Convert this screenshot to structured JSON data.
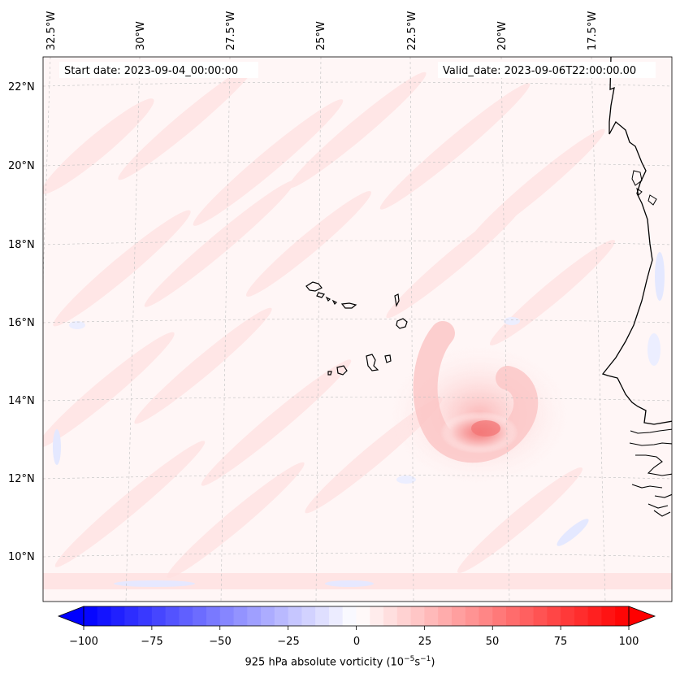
{
  "map": {
    "start_date": "Start date: 2023-09-04_00:00:00",
    "valid_date": "Valid_date: 2023-09-06T22:00:00.00",
    "lon_labels": [
      "32.5°W",
      "30°W",
      "27.5°W",
      "25°W",
      "22.5°W",
      "20°W",
      "17.5°W"
    ],
    "lat_labels": [
      "22°N",
      "20°N",
      "18°N",
      "16°N",
      "14°N",
      "12°N",
      "10°N"
    ],
    "colors": {
      "negative": "#0000ff",
      "positive": "#ff0000",
      "neutral": "#ffffff",
      "coast": "#000000"
    }
  },
  "colorbar": {
    "ticks": [
      "−100",
      "−75",
      "−50",
      "−25",
      "0",
      "25",
      "50",
      "75",
      "100"
    ],
    "label_main": "925 hPa absolute vorticity (10",
    "label_exp1": "−5",
    "label_mid": "s",
    "label_exp2": "−1",
    "label_end": ")"
  }
}
